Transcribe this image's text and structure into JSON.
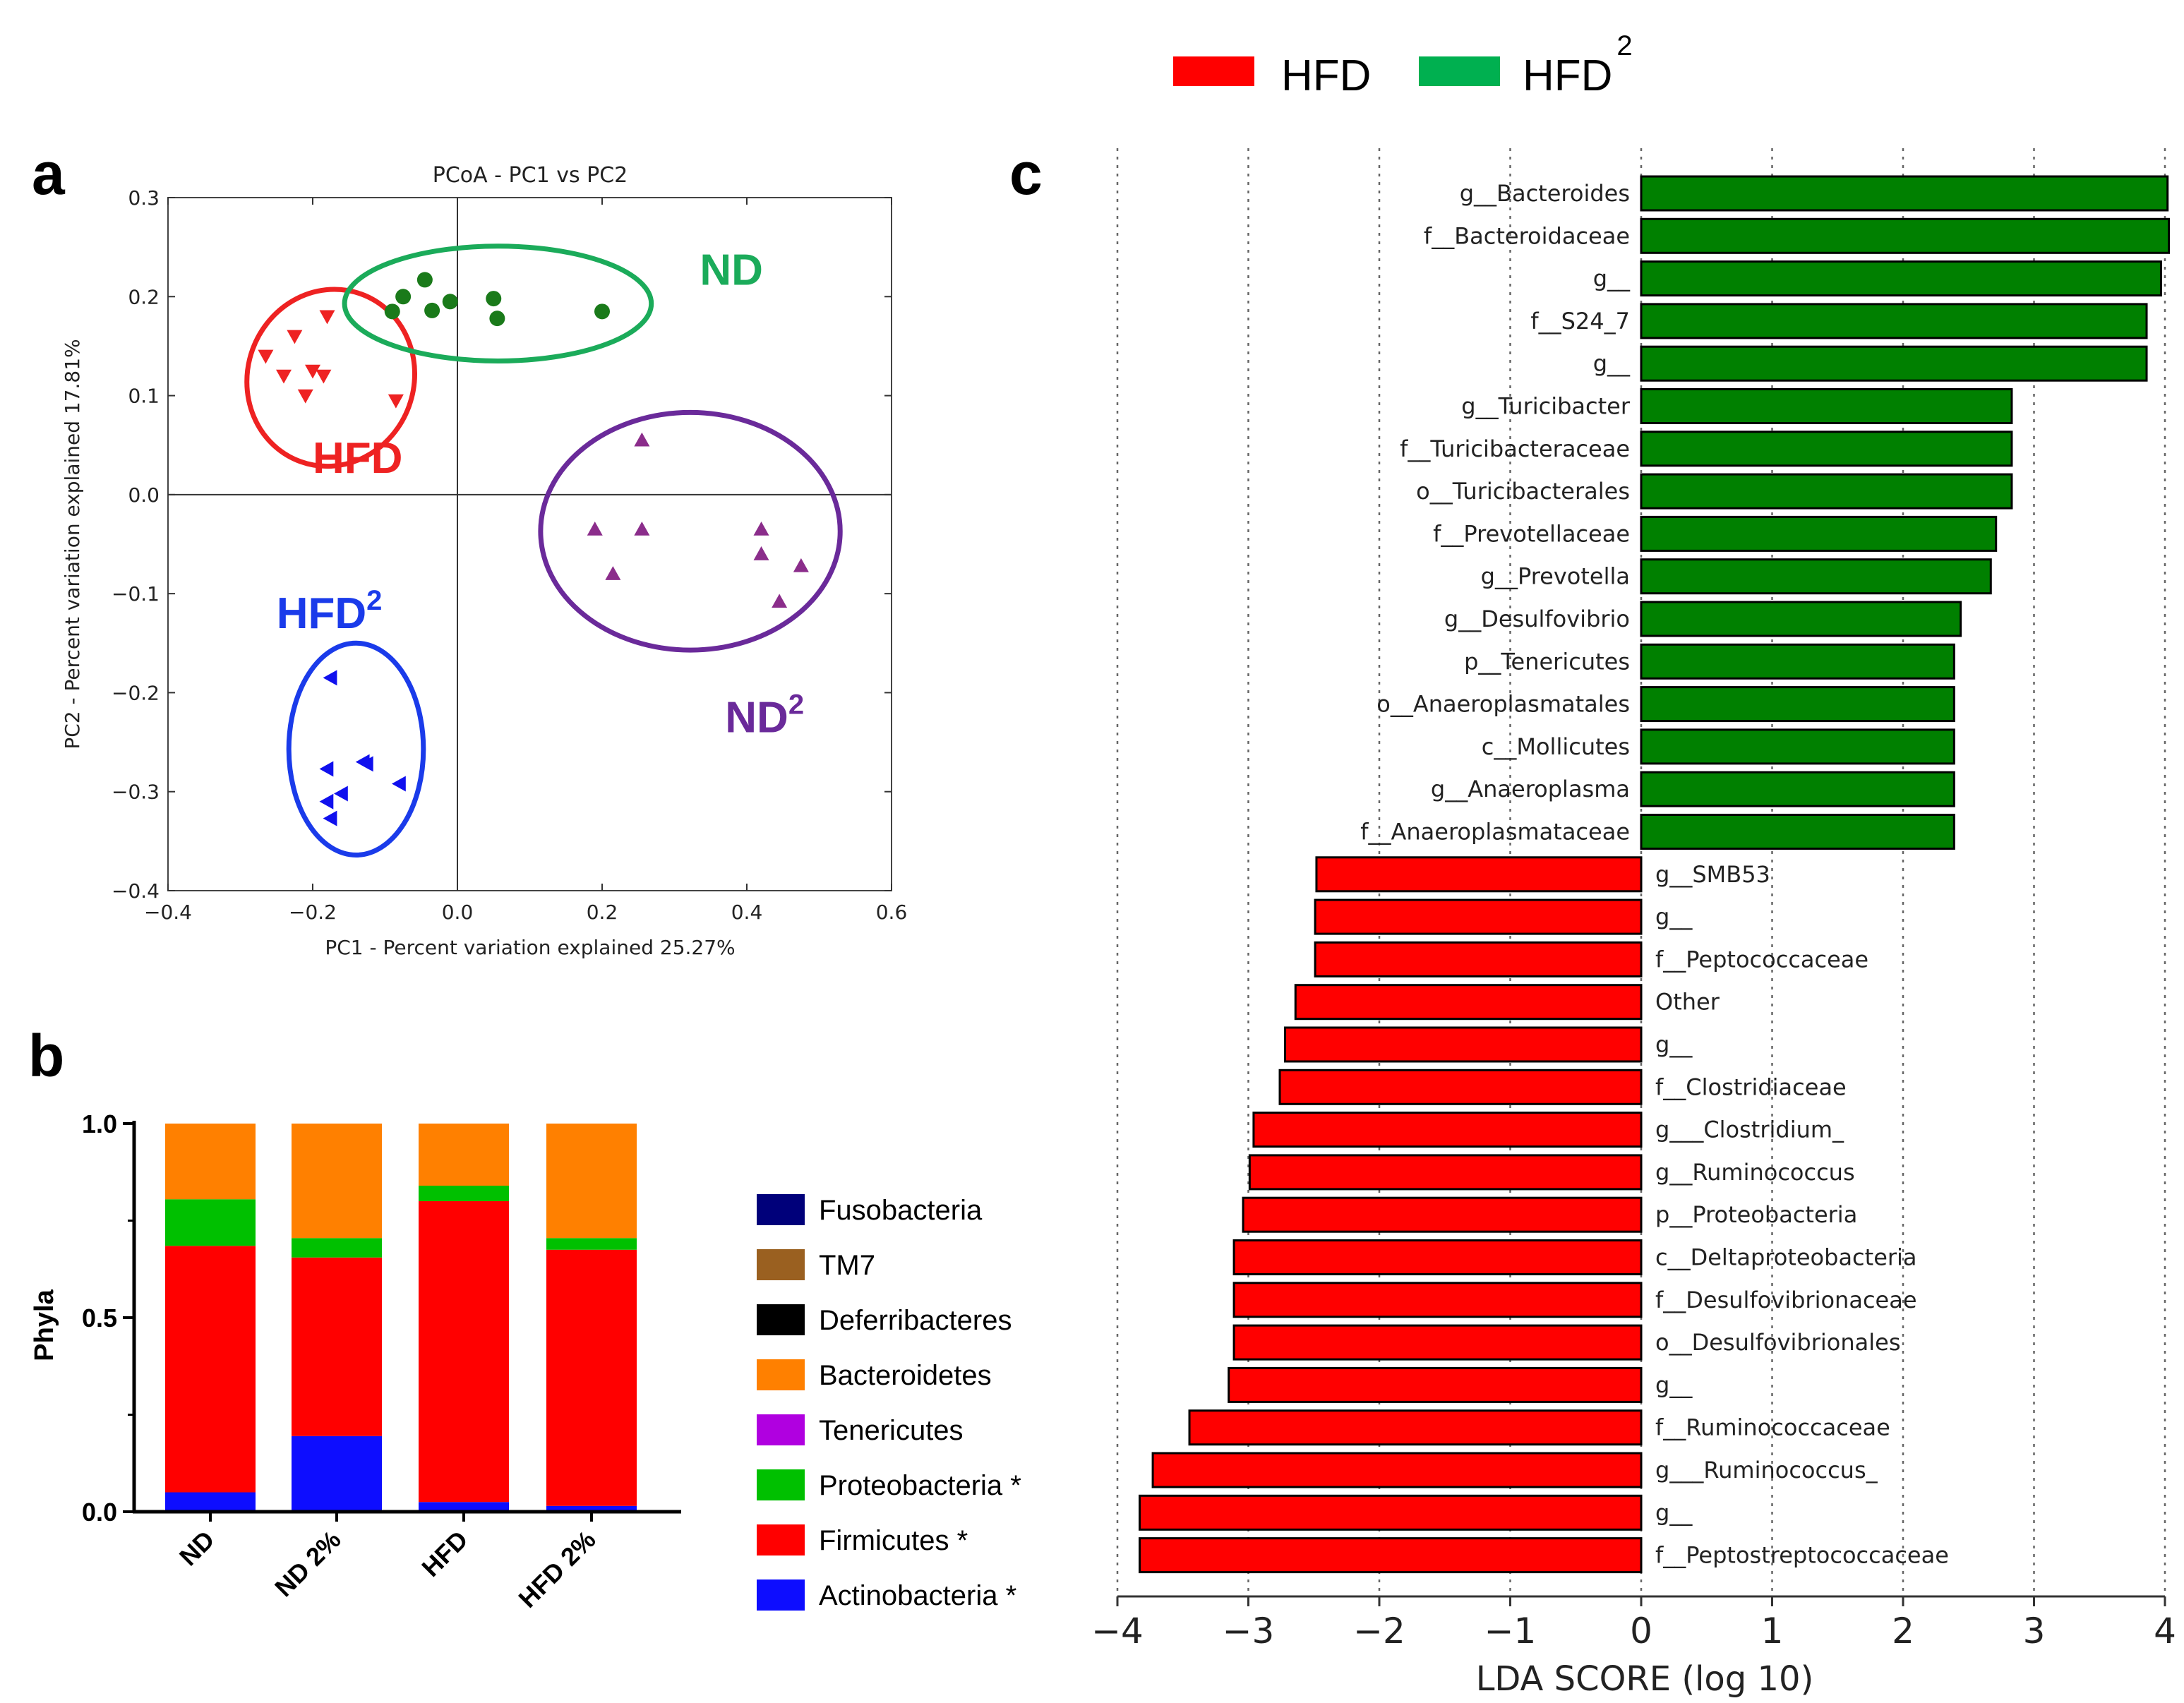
{
  "panels": {
    "a": "a",
    "b": "b",
    "c": "c"
  },
  "chart_data": [
    {
      "id": "a",
      "type": "scatter",
      "title": "PCoA - PC1 vs PC2",
      "xlabel": "PC1 - Percent variation explained 25.27%",
      "ylabel": "PC2 - Percent variation explained 17.81%",
      "xlim": [
        -0.4,
        0.6
      ],
      "ylim": [
        -0.4,
        0.3
      ],
      "xticks": [
        -0.4,
        -0.2,
        0.0,
        0.2,
        0.4,
        0.6
      ],
      "yticks": [
        -0.4,
        -0.3,
        -0.2,
        -0.1,
        0.0,
        0.1,
        0.2,
        0.3
      ],
      "xtick_labels": [
        "−0.4",
        "−0.2",
        "0.0",
        "0.2",
        "0.4",
        "0.6"
      ],
      "ytick_labels": [
        "−0.4",
        "−0.3",
        "−0.2",
        "−0.1",
        "0.0",
        "0.1",
        "0.2",
        "0.3"
      ],
      "groups": [
        {
          "name": "HFD",
          "label": "HFD",
          "sup": "",
          "color": "#ee2222",
          "marker": "triangle-down",
          "points": [
            [
              -0.265,
              0.14
            ],
            [
              -0.225,
              0.16
            ],
            [
              -0.18,
              0.18
            ],
            [
              -0.24,
              0.12
            ],
            [
              -0.2,
              0.125
            ],
            [
              -0.185,
              0.12
            ],
            [
              -0.21,
              0.1
            ],
            [
              -0.085,
              0.095
            ]
          ],
          "ellipse": {
            "cx": -0.175,
            "cy": 0.118,
            "rx": 0.115,
            "ry": 0.09,
            "angle": 20
          },
          "label_pos": [
            -0.2,
            0.022
          ]
        },
        {
          "name": "ND",
          "label": "ND",
          "sup": "",
          "color": "#1a7a1a",
          "ring": "#1bab5a",
          "marker": "circle",
          "points": [
            [
              -0.09,
              0.185
            ],
            [
              -0.075,
              0.2
            ],
            [
              -0.045,
              0.217
            ],
            [
              -0.035,
              0.186
            ],
            [
              -0.01,
              0.195
            ],
            [
              0.05,
              0.198
            ],
            [
              0.055,
              0.178
            ],
            [
              0.2,
              0.185
            ]
          ],
          "ellipse": {
            "cx": 0.056,
            "cy": 0.193,
            "rx": 0.212,
            "ry": 0.058,
            "angle": 0
          },
          "label_pos": [
            0.335,
            0.212
          ]
        },
        {
          "name": "ND2",
          "label": "ND",
          "sup": "2",
          "color": "#8b2d8b",
          "ring": "#6a2a9a",
          "marker": "triangle-up",
          "points": [
            [
              0.255,
              0.055
            ],
            [
              0.19,
              -0.035
            ],
            [
              0.255,
              -0.035
            ],
            [
              0.215,
              -0.08
            ],
            [
              0.42,
              -0.035
            ],
            [
              0.42,
              -0.06
            ],
            [
              0.475,
              -0.072
            ],
            [
              0.445,
              -0.108
            ]
          ],
          "ellipse": {
            "cx": 0.322,
            "cy": -0.037,
            "rx": 0.207,
            "ry": 0.12,
            "angle": 0
          },
          "label_pos": [
            0.37,
            -0.24
          ]
        },
        {
          "name": "HFD2",
          "label": "HFD",
          "sup": "2",
          "color": "#1010ee",
          "ring": "#1a3bea",
          "marker": "triangle-left",
          "points": [
            [
              -0.175,
              -0.185
            ],
            [
              -0.18,
              -0.277
            ],
            [
              -0.13,
              -0.27
            ],
            [
              -0.125,
              -0.272
            ],
            [
              -0.08,
              -0.292
            ],
            [
              -0.16,
              -0.302
            ],
            [
              -0.18,
              -0.31
            ],
            [
              -0.175,
              -0.327
            ]
          ],
          "ellipse": {
            "cx": -0.14,
            "cy": -0.257,
            "rx": 0.093,
            "ry": 0.107,
            "angle": 0
          },
          "label_pos": [
            -0.25,
            -0.135
          ]
        }
      ]
    },
    {
      "id": "b",
      "type": "bar",
      "stacked": true,
      "ylabel": "Phyla",
      "categories": [
        "ND",
        "ND 2%",
        "HFD",
        "HFD 2%"
      ],
      "ylim": [
        0,
        1.0
      ],
      "ytick_labels": [
        "0.0",
        "0.5",
        "1.0"
      ],
      "series": [
        {
          "name": "Actinobacteria",
          "legend": "Actinobacteria *",
          "color": "#0d0dff",
          "values": [
            0.05,
            0.195,
            0.025,
            0.015
          ]
        },
        {
          "name": "Firmicutes",
          "legend": "Firmicutes *",
          "color": "#ff0000",
          "values": [
            0.635,
            0.46,
            0.775,
            0.66
          ]
        },
        {
          "name": "Proteobacteria",
          "legend": "Proteobacteria *",
          "color": "#00c000",
          "values": [
            0.12,
            0.05,
            0.04,
            0.03
          ]
        },
        {
          "name": "Tenericutes",
          "legend": "Tenericutes",
          "color": "#b000e0",
          "values": [
            0.0,
            0.0,
            0.0,
            0.0
          ]
        },
        {
          "name": "Bacteroidetes",
          "legend": "Bacteroidetes",
          "color": "#ff8000",
          "values": [
            0.195,
            0.295,
            0.16,
            0.295
          ]
        },
        {
          "name": "Deferribacteres",
          "legend": "Deferribacteres",
          "color": "#000000",
          "values": [
            0.0,
            0.0,
            0.0,
            0.0
          ]
        },
        {
          "name": "TM7",
          "legend": "TM7",
          "color": "#9a6020",
          "values": [
            0.0,
            0.0,
            0.0,
            0.0
          ]
        },
        {
          "name": "Fusobacteria",
          "legend": "Fusobacteria",
          "color": "#00007a",
          "values": [
            0.0,
            0.0,
            0.0,
            0.0
          ]
        }
      ],
      "legend_order": [
        "Fusobacteria",
        "TM7",
        "Deferribacteres",
        "Bacteroidetes",
        "Tenericutes",
        "Proteobacteria",
        "Firmicutes",
        "Actinobacteria"
      ]
    },
    {
      "id": "c",
      "type": "bar",
      "orientation": "horizontal",
      "xlabel": "LDA SCORE (log 10)",
      "xlim": [
        -4,
        4
      ],
      "xticks": [
        -4,
        -3,
        -2,
        -1,
        0,
        1,
        2,
        3,
        4
      ],
      "xtick_labels": [
        "−4",
        "−3",
        "−2",
        "−1",
        "0",
        "1",
        "2",
        "3",
        "4"
      ],
      "legend": [
        {
          "label": "HFD",
          "sup": "",
          "color": "#ff0000"
        },
        {
          "label": "HFD",
          "sup": "2",
          "color": "#00b050"
        }
      ],
      "bar_colors": {
        "HFD": "#ff0000",
        "HFD2": "#008000"
      },
      "categories": [
        "g__Bacteroides",
        "f__Bacteroidaceae",
        "g__",
        "f__S24_7",
        "g__",
        "g__Turicibacter",
        "f__Turicibacteraceae",
        "o__Turicibacterales",
        "f__Prevotellaceae",
        "g__Prevotella",
        "g__Desulfovibrio",
        "p__Tenericutes",
        "o__Anaeroplasmatales",
        "c__Mollicutes",
        "g__Anaeroplasma",
        "f__Anaeroplasmataceae",
        "g__SMB53",
        "g__",
        "f__Peptococcaceae",
        "Other",
        "g__",
        "f__Clostridiaceae",
        "g___Clostridium_",
        "g__Ruminococcus",
        "p__Proteobacteria",
        "c__Deltaproteobacteria",
        "f__Desulfovibrionaceae",
        "o__Desulfovibrionales",
        "g__",
        "f__Ruminococcaceae",
        "g___Ruminococcus_",
        "g__",
        "f__Peptostreptococcaceae"
      ],
      "values": [
        4.02,
        4.03,
        3.97,
        3.86,
        3.86,
        2.83,
        2.83,
        2.83,
        2.71,
        2.67,
        2.44,
        2.39,
        2.39,
        2.39,
        2.39,
        2.39,
        -2.48,
        -2.49,
        -2.49,
        -2.64,
        -2.72,
        -2.76,
        -2.96,
        -2.99,
        -3.04,
        -3.11,
        -3.11,
        -3.11,
        -3.15,
        -3.45,
        -3.73,
        -3.83,
        -3.83
      ]
    }
  ]
}
